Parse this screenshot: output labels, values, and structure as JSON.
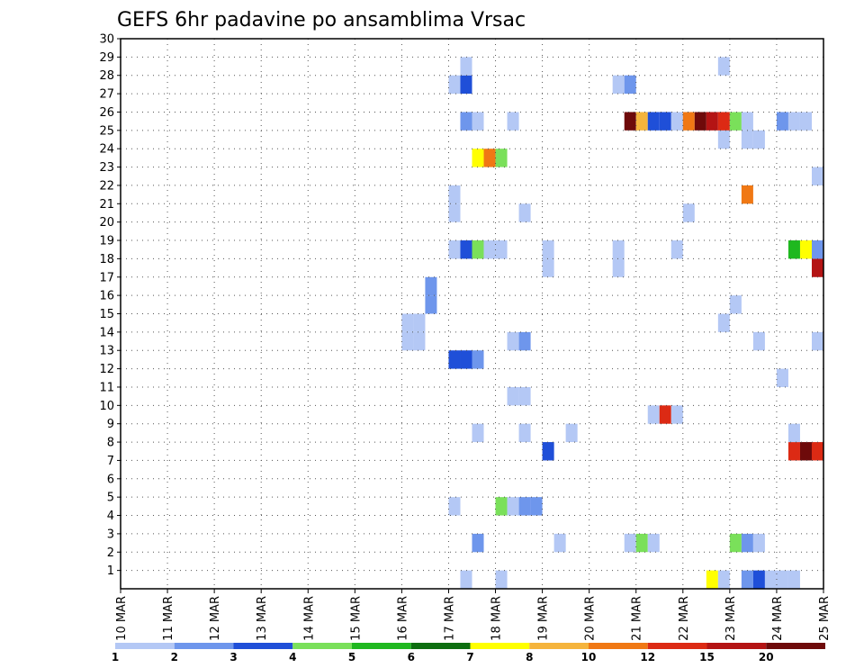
{
  "chart_data": {
    "type": "heatmap",
    "title": "GEFS 6hr padavine po ansamblima Vrsac",
    "xlabel": "",
    "ylabel": "",
    "x_labels": [
      "10 MAR",
      "11 MAR",
      "12 MAR",
      "13 MAR",
      "14 MAR",
      "15 MAR",
      "16 MAR",
      "17 MAR",
      "18 MAR",
      "19 MAR",
      "20 MAR",
      "21 MAR",
      "22 MAR",
      "23 MAR",
      "24 MAR",
      "25 MAR"
    ],
    "y_labels": [
      "1",
      "2",
      "3",
      "4",
      "5",
      "6",
      "7",
      "8",
      "9",
      "10",
      "11",
      "12",
      "13",
      "14",
      "15",
      "16",
      "17",
      "18",
      "19",
      "20",
      "21",
      "22",
      "23",
      "24",
      "25",
      "26",
      "27",
      "28",
      "29",
      "30"
    ],
    "xlim": [
      0,
      15
    ],
    "ylim": [
      0,
      30
    ],
    "grid": true,
    "legend_position": "bottom",
    "legend": {
      "labels": [
        "1",
        "2",
        "3",
        "4",
        "5",
        "6",
        "7",
        "8",
        "10",
        "12",
        "15",
        "20"
      ],
      "colors": [
        "#b4c8f5",
        "#6e96ec",
        "#1f4fd8",
        "#7ae05a",
        "#1fb81f",
        "#0d6e10",
        "#ffff00",
        "#f5b43c",
        "#f07814",
        "#dc2a14",
        "#b41414",
        "#6e0a0a"
      ]
    },
    "cells": [
      {
        "x": 7.25,
        "y": 0,
        "c": 0
      },
      {
        "x": 8.0,
        "y": 0,
        "c": 0
      },
      {
        "x": 12.5,
        "y": 0,
        "c": 6
      },
      {
        "x": 12.75,
        "y": 0,
        "c": 0
      },
      {
        "x": 13.25,
        "y": 0,
        "c": 1
      },
      {
        "x": 13.5,
        "y": 0,
        "c": 2
      },
      {
        "x": 13.75,
        "y": 0,
        "c": 0
      },
      {
        "x": 14.0,
        "y": 0,
        "c": 0
      },
      {
        "x": 14.25,
        "y": 0,
        "c": 0
      },
      {
        "x": 7.5,
        "y": 2,
        "c": 1
      },
      {
        "x": 9.25,
        "y": 2,
        "c": 0
      },
      {
        "x": 10.75,
        "y": 2,
        "c": 0
      },
      {
        "x": 11.0,
        "y": 2,
        "c": 3
      },
      {
        "x": 11.25,
        "y": 2,
        "c": 0
      },
      {
        "x": 13.0,
        "y": 2,
        "c": 3
      },
      {
        "x": 13.25,
        "y": 2,
        "c": 1
      },
      {
        "x": 13.5,
        "y": 2,
        "c": 0
      },
      {
        "x": 7.0,
        "y": 4,
        "c": 0
      },
      {
        "x": 8.0,
        "y": 4,
        "c": 3
      },
      {
        "x": 8.25,
        "y": 4,
        "c": 0
      },
      {
        "x": 8.5,
        "y": 4,
        "c": 1
      },
      {
        "x": 8.75,
        "y": 4,
        "c": 1
      },
      {
        "x": 9.0,
        "y": 7,
        "c": 2
      },
      {
        "x": 14.25,
        "y": 7,
        "c": 9
      },
      {
        "x": 14.5,
        "y": 7,
        "c": 11
      },
      {
        "x": 14.75,
        "y": 7,
        "c": 9
      },
      {
        "x": 7.5,
        "y": 8,
        "c": 0
      },
      {
        "x": 8.5,
        "y": 8,
        "c": 0
      },
      {
        "x": 9.5,
        "y": 8,
        "c": 0
      },
      {
        "x": 14.25,
        "y": 8,
        "c": 0
      },
      {
        "x": 11.25,
        "y": 9,
        "c": 0
      },
      {
        "x": 11.5,
        "y": 9,
        "c": 9
      },
      {
        "x": 11.75,
        "y": 9,
        "c": 0
      },
      {
        "x": 8.25,
        "y": 10,
        "c": 0
      },
      {
        "x": 8.5,
        "y": 10,
        "c": 0
      },
      {
        "x": 14.0,
        "y": 11,
        "c": 0
      },
      {
        "x": 7.0,
        "y": 12,
        "c": 2
      },
      {
        "x": 7.25,
        "y": 12,
        "c": 2
      },
      {
        "x": 7.5,
        "y": 12,
        "c": 1
      },
      {
        "x": 6.0,
        "y": 13,
        "c": 0
      },
      {
        "x": 6.25,
        "y": 13,
        "c": 0
      },
      {
        "x": 8.25,
        "y": 13,
        "c": 0
      },
      {
        "x": 8.5,
        "y": 13,
        "c": 1
      },
      {
        "x": 13.5,
        "y": 13,
        "c": 0
      },
      {
        "x": 14.75,
        "y": 13,
        "c": 0
      },
      {
        "x": 6.0,
        "y": 14,
        "c": 0
      },
      {
        "x": 6.25,
        "y": 14,
        "c": 0
      },
      {
        "x": 12.75,
        "y": 14,
        "c": 0
      },
      {
        "x": 6.5,
        "y": 15,
        "c": 1
      },
      {
        "x": 13.0,
        "y": 15,
        "c": 0
      },
      {
        "x": 6.5,
        "y": 16,
        "c": 1
      },
      {
        "x": 9.0,
        "y": 17,
        "c": 0
      },
      {
        "x": 10.5,
        "y": 17,
        "c": 0
      },
      {
        "x": 14.75,
        "y": 17,
        "c": 10
      },
      {
        "x": 9.0,
        "y": 18,
        "c": 0
      },
      {
        "x": 10.5,
        "y": 18,
        "c": 0
      },
      {
        "x": 7.0,
        "y": 18,
        "c": 0
      },
      {
        "x": 7.25,
        "y": 18,
        "c": 2
      },
      {
        "x": 7.5,
        "y": 18,
        "c": 3
      },
      {
        "x": 7.75,
        "y": 18,
        "c": 0
      },
      {
        "x": 8.0,
        "y": 18,
        "c": 0
      },
      {
        "x": 11.75,
        "y": 18,
        "c": 0
      },
      {
        "x": 14.25,
        "y": 18,
        "c": 4
      },
      {
        "x": 14.5,
        "y": 18,
        "c": 6
      },
      {
        "x": 14.75,
        "y": 18,
        "c": 1
      },
      {
        "x": 7.0,
        "y": 20,
        "c": 0
      },
      {
        "x": 8.5,
        "y": 20,
        "c": 0
      },
      {
        "x": 12.0,
        "y": 20,
        "c": 0
      },
      {
        "x": 7.0,
        "y": 21,
        "c": 0
      },
      {
        "x": 13.25,
        "y": 21,
        "c": 8
      },
      {
        "x": 14.75,
        "y": 22,
        "c": 0
      },
      {
        "x": 7.5,
        "y": 23,
        "c": 6
      },
      {
        "x": 7.75,
        "y": 23,
        "c": 8
      },
      {
        "x": 8.0,
        "y": 23,
        "c": 3
      },
      {
        "x": 12.75,
        "y": 24,
        "c": 0
      },
      {
        "x": 13.25,
        "y": 24,
        "c": 0
      },
      {
        "x": 13.5,
        "y": 24,
        "c": 0
      },
      {
        "x": 7.25,
        "y": 25,
        "c": 1
      },
      {
        "x": 7.5,
        "y": 25,
        "c": 0
      },
      {
        "x": 8.25,
        "y": 25,
        "c": 0
      },
      {
        "x": 10.75,
        "y": 25,
        "c": 11
      },
      {
        "x": 11.0,
        "y": 25,
        "c": 7
      },
      {
        "x": 11.25,
        "y": 25,
        "c": 2
      },
      {
        "x": 11.5,
        "y": 25,
        "c": 2
      },
      {
        "x": 11.75,
        "y": 25,
        "c": 0
      },
      {
        "x": 12.0,
        "y": 25,
        "c": 8
      },
      {
        "x": 12.25,
        "y": 25,
        "c": 11
      },
      {
        "x": 12.5,
        "y": 25,
        "c": 10
      },
      {
        "x": 12.75,
        "y": 25,
        "c": 9
      },
      {
        "x": 13.0,
        "y": 25,
        "c": 3
      },
      {
        "x": 13.25,
        "y": 25,
        "c": 0
      },
      {
        "x": 14.0,
        "y": 25,
        "c": 1
      },
      {
        "x": 14.25,
        "y": 25,
        "c": 0
      },
      {
        "x": 14.5,
        "y": 25,
        "c": 0
      },
      {
        "x": 7.0,
        "y": 27,
        "c": 0
      },
      {
        "x": 7.25,
        "y": 27,
        "c": 2
      },
      {
        "x": 10.5,
        "y": 27,
        "c": 0
      },
      {
        "x": 10.75,
        "y": 27,
        "c": 1
      },
      {
        "x": 7.25,
        "y": 28,
        "c": 0
      },
      {
        "x": 12.75,
        "y": 28,
        "c": 0
      }
    ]
  }
}
